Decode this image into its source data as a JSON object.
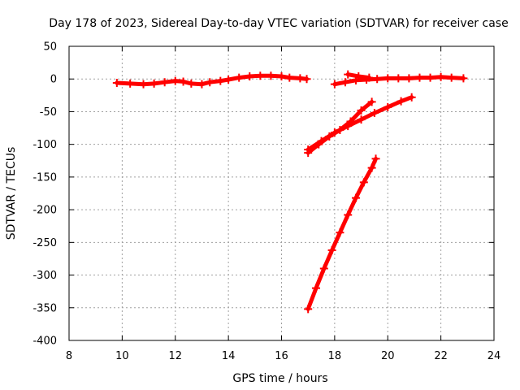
{
  "chart_data": {
    "type": "scatter",
    "title": "Day 178 of 2023, Sidereal Day-to-day VTEC variation (SDTVAR) for receiver case",
    "xlabel": "GPS time / hours",
    "ylabel": "SDTVAR / TECUs",
    "xlim": [
      8,
      24
    ],
    "ylim": [
      -400,
      50
    ],
    "xticks": [
      8,
      10,
      12,
      14,
      16,
      18,
      20,
      22,
      24
    ],
    "yticks": [
      -400,
      -350,
      -300,
      -250,
      -200,
      -150,
      -100,
      -50,
      0,
      50
    ],
    "grid": true,
    "series_color": "#ff0000",
    "series": [
      {
        "points": [
          [
            9.8,
            -6
          ],
          [
            10.3,
            -7
          ],
          [
            10.8,
            -8
          ],
          [
            11.2,
            -7
          ],
          [
            11.6,
            -5
          ],
          [
            12.0,
            -3
          ],
          [
            12.3,
            -4
          ],
          [
            12.6,
            -7
          ],
          [
            13.0,
            -8
          ],
          [
            13.3,
            -5
          ],
          [
            13.7,
            -3
          ],
          [
            14.0,
            -1
          ],
          [
            14.4,
            2
          ],
          [
            14.8,
            4
          ],
          [
            15.2,
            5
          ],
          [
            15.6,
            5
          ],
          [
            16.0,
            4
          ],
          [
            16.3,
            2
          ],
          [
            16.7,
            1
          ],
          [
            16.95,
            0
          ]
        ]
      },
      {
        "points": [
          [
            18.0,
            -8
          ],
          [
            18.4,
            -5
          ],
          [
            18.8,
            -2
          ],
          [
            19.2,
            -1
          ],
          [
            19.6,
            0
          ],
          [
            20.0,
            1
          ],
          [
            20.4,
            1
          ],
          [
            20.8,
            1
          ],
          [
            21.2,
            2
          ],
          [
            21.6,
            2
          ],
          [
            22.0,
            3
          ],
          [
            22.4,
            2
          ],
          [
            22.85,
            1
          ]
        ]
      },
      {
        "points": [
          [
            18.5,
            7
          ],
          [
            18.9,
            4
          ],
          [
            19.3,
            2
          ]
        ]
      },
      {
        "points": [
          [
            17.0,
            -113
          ],
          [
            17.4,
            -100
          ],
          [
            17.8,
            -88
          ],
          [
            18.2,
            -78
          ],
          [
            18.6,
            -65
          ],
          [
            19.0,
            -48
          ],
          [
            19.4,
            -35
          ]
        ]
      },
      {
        "points": [
          [
            17.0,
            -108
          ],
          [
            17.5,
            -95
          ],
          [
            18.0,
            -82
          ],
          [
            18.5,
            -72
          ],
          [
            19.0,
            -62
          ],
          [
            19.5,
            -52
          ],
          [
            20.0,
            -43
          ],
          [
            20.5,
            -34
          ],
          [
            20.9,
            -28
          ]
        ]
      },
      {
        "points": [
          [
            17.0,
            -352
          ],
          [
            17.3,
            -320
          ],
          [
            17.6,
            -290
          ],
          [
            17.9,
            -262
          ],
          [
            18.2,
            -235
          ],
          [
            18.5,
            -208
          ],
          [
            18.8,
            -182
          ],
          [
            19.1,
            -158
          ],
          [
            19.4,
            -136
          ],
          [
            19.55,
            -122
          ]
        ]
      }
    ]
  }
}
